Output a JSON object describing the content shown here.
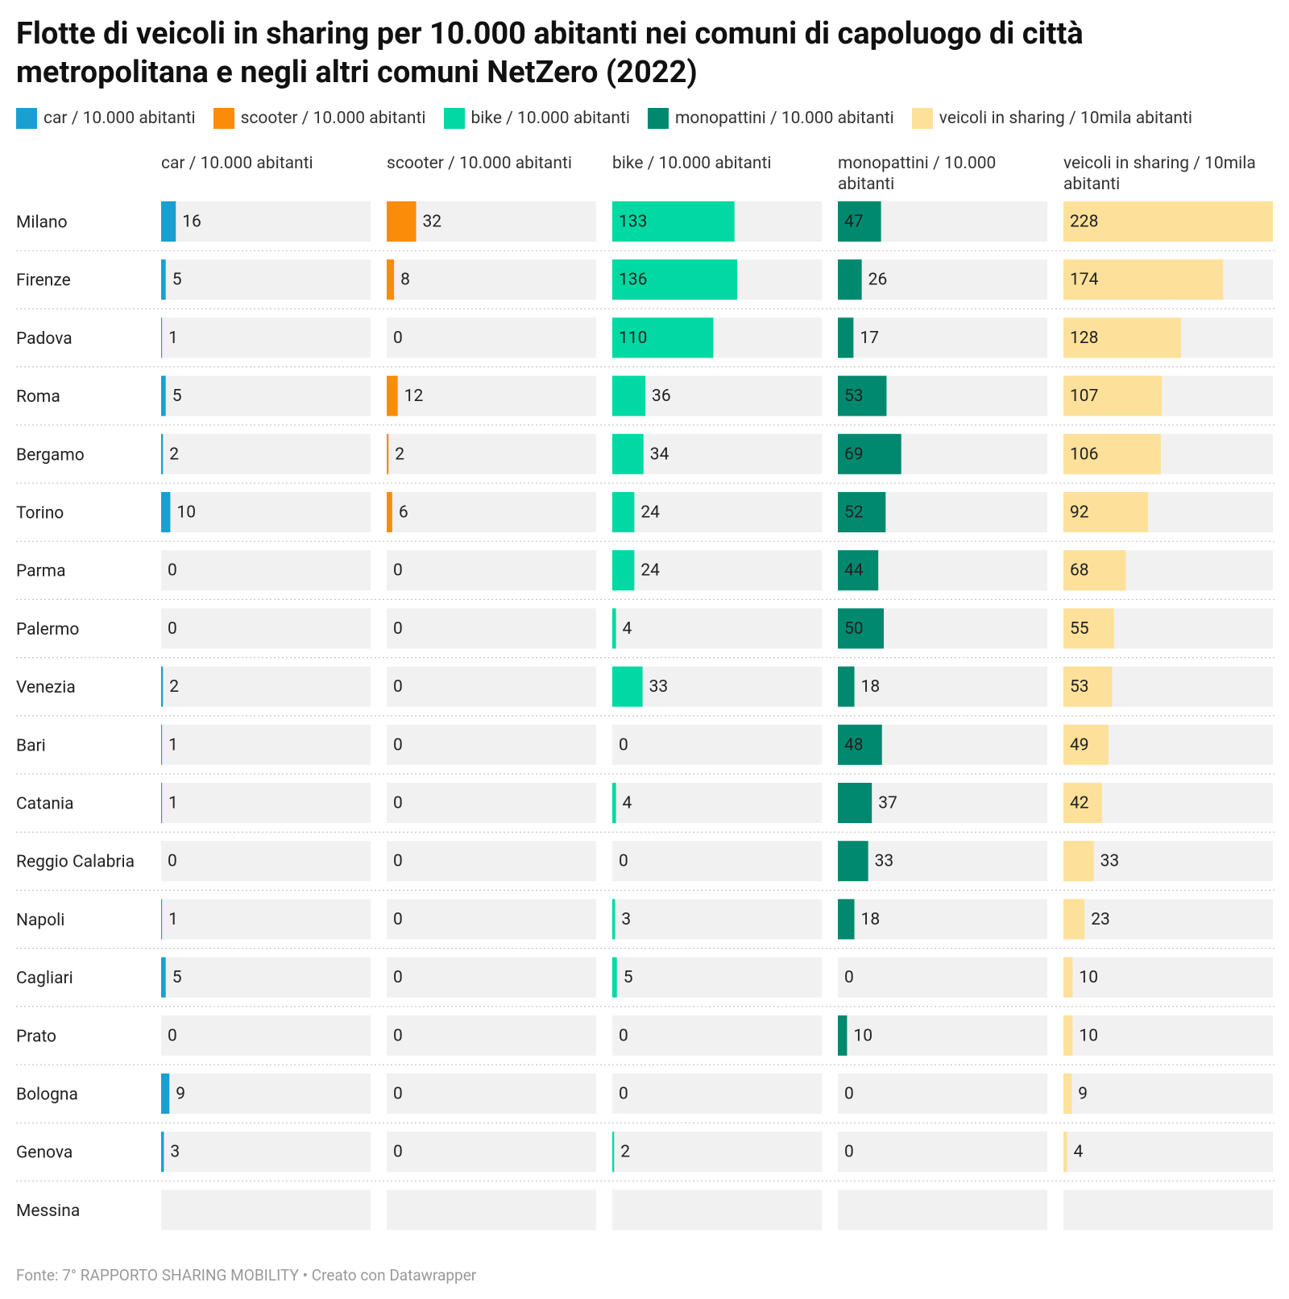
{
  "chart_data": {
    "type": "split-bar",
    "title": "Flotte di veicoli in sharing per 10.000 abitanti nei comuni di capoluogo di città metropolitana e negli altri comuni NetZero (2022)",
    "source": "Fonte: 7° RAPPORTO SHARING MOBILITY • Creato con Datawrapper",
    "categories": [
      "Milano",
      "Firenze",
      "Padova",
      "Roma",
      "Bergamo",
      "Torino",
      "Parma",
      "Palermo",
      "Venezia",
      "Bari",
      "Catania",
      "Reggio Calabria",
      "Napoli",
      "Cagliari",
      "Prato",
      "Bologna",
      "Genova",
      "Messina"
    ],
    "series": [
      {
        "name": "car / 10.000 abitanti",
        "color": "#1b9fd0",
        "values": [
          16,
          5,
          1,
          5,
          2,
          10,
          0,
          0,
          2,
          1,
          1,
          0,
          1,
          5,
          0,
          9,
          3,
          null
        ]
      },
      {
        "name": "scooter / 10.000 abitanti",
        "color": "#fa8c0a",
        "values": [
          32,
          8,
          0,
          12,
          2,
          6,
          0,
          0,
          0,
          0,
          0,
          0,
          0,
          0,
          0,
          0,
          0,
          null
        ]
      },
      {
        "name": "bike / 10.000 abitanti",
        "color": "#00d9a3",
        "values": [
          133,
          136,
          110,
          36,
          34,
          24,
          24,
          4,
          33,
          0,
          4,
          0,
          3,
          5,
          0,
          0,
          2,
          null
        ]
      },
      {
        "name": "monopattini / 10.000 abitanti",
        "color": "#00896f",
        "values": [
          47,
          26,
          17,
          53,
          69,
          52,
          44,
          50,
          18,
          48,
          37,
          33,
          18,
          0,
          10,
          0,
          0,
          null
        ]
      },
      {
        "name": "veicoli in sharing / 10mila abitanti",
        "color": "#fde19a",
        "values": [
          228,
          174,
          128,
          107,
          106,
          92,
          68,
          55,
          53,
          49,
          42,
          33,
          23,
          10,
          10,
          9,
          4,
          null
        ]
      }
    ]
  }
}
